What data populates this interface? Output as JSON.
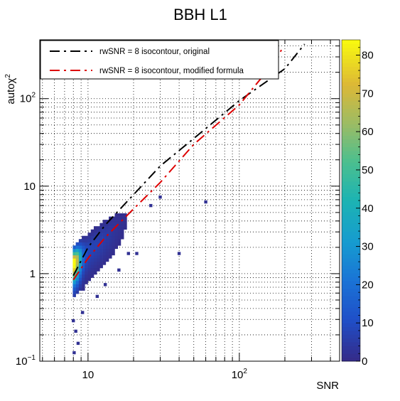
{
  "chart_data": {
    "type": "heatmap",
    "title": "BBH L1",
    "xlabel": "SNR",
    "ylabel": "autoχ²",
    "ylabel_main": "autoχ",
    "ylabel_sup": "2",
    "x_scale": "log",
    "y_scale": "log",
    "xlim": [
      4.8,
      460
    ],
    "ylim": [
      0.1,
      470
    ],
    "grid": true,
    "x_ticks": [
      {
        "value": 10,
        "label": "10",
        "sup": ""
      },
      {
        "value": 100,
        "label": "10",
        "sup": "2"
      }
    ],
    "y_ticks": [
      {
        "value": 0.1,
        "label": "10",
        "sup": "−1"
      },
      {
        "value": 1,
        "label": "1",
        "sup": ""
      },
      {
        "value": 10,
        "label": "10",
        "sup": ""
      },
      {
        "value": 100,
        "label": "10",
        "sup": "2"
      }
    ],
    "colorbar": {
      "min": 0,
      "max": 84,
      "ticks": [
        0,
        10,
        20,
        30,
        40,
        50,
        60,
        70,
        80
      ],
      "tick_labels": [
        "0",
        "10",
        "20",
        "30",
        "40",
        "50",
        "60",
        "70",
        "80"
      ]
    },
    "series": [
      {
        "name": "rwSNR = 8 isocontour, original",
        "color": "#000000",
        "dash": "long-dash-dot",
        "points": [
          [
            8,
            0.95
          ],
          [
            10,
            2.0
          ],
          [
            13,
            3.6
          ],
          [
            20,
            8.0
          ],
          [
            30,
            17
          ],
          [
            50,
            35
          ],
          [
            100,
            95
          ],
          [
            200,
            220
          ],
          [
            270,
            420
          ]
        ]
      },
      {
        "name": "rwSNR = 8 isocontour, modified formula",
        "color": "#dd0000",
        "dash": "long-dash-dot",
        "points": [
          [
            8,
            0.85
          ],
          [
            10,
            1.5
          ],
          [
            13,
            2.6
          ],
          [
            20,
            5.5
          ],
          [
            30,
            11
          ],
          [
            50,
            30
          ],
          [
            100,
            85
          ],
          [
            150,
            200
          ],
          [
            190,
            360
          ]
        ]
      }
    ],
    "scatter_outliers": [
      {
        "x": 8.0,
        "y": 0.29,
        "value": 2
      },
      {
        "x": 8.3,
        "y": 0.22,
        "value": 2
      },
      {
        "x": 8.6,
        "y": 0.16,
        "value": 2
      },
      {
        "x": 8.1,
        "y": 0.125,
        "value": 2
      },
      {
        "x": 9.2,
        "y": 0.36,
        "value": 2
      },
      {
        "x": 11.5,
        "y": 0.55,
        "value": 2
      },
      {
        "x": 13,
        "y": 0.75,
        "value": 2
      },
      {
        "x": 16,
        "y": 1.1,
        "value": 2
      },
      {
        "x": 18.5,
        "y": 1.7,
        "value": 2
      },
      {
        "x": 21,
        "y": 1.7,
        "value": 2
      },
      {
        "x": 40,
        "y": 1.7,
        "value": 2
      },
      {
        "x": 60,
        "y": 6.6,
        "value": 2
      },
      {
        "x": 30,
        "y": 7.5,
        "value": 2
      },
      {
        "x": 26,
        "y": 6.0,
        "value": 2
      }
    ],
    "legend": {
      "position": "top-left"
    }
  }
}
